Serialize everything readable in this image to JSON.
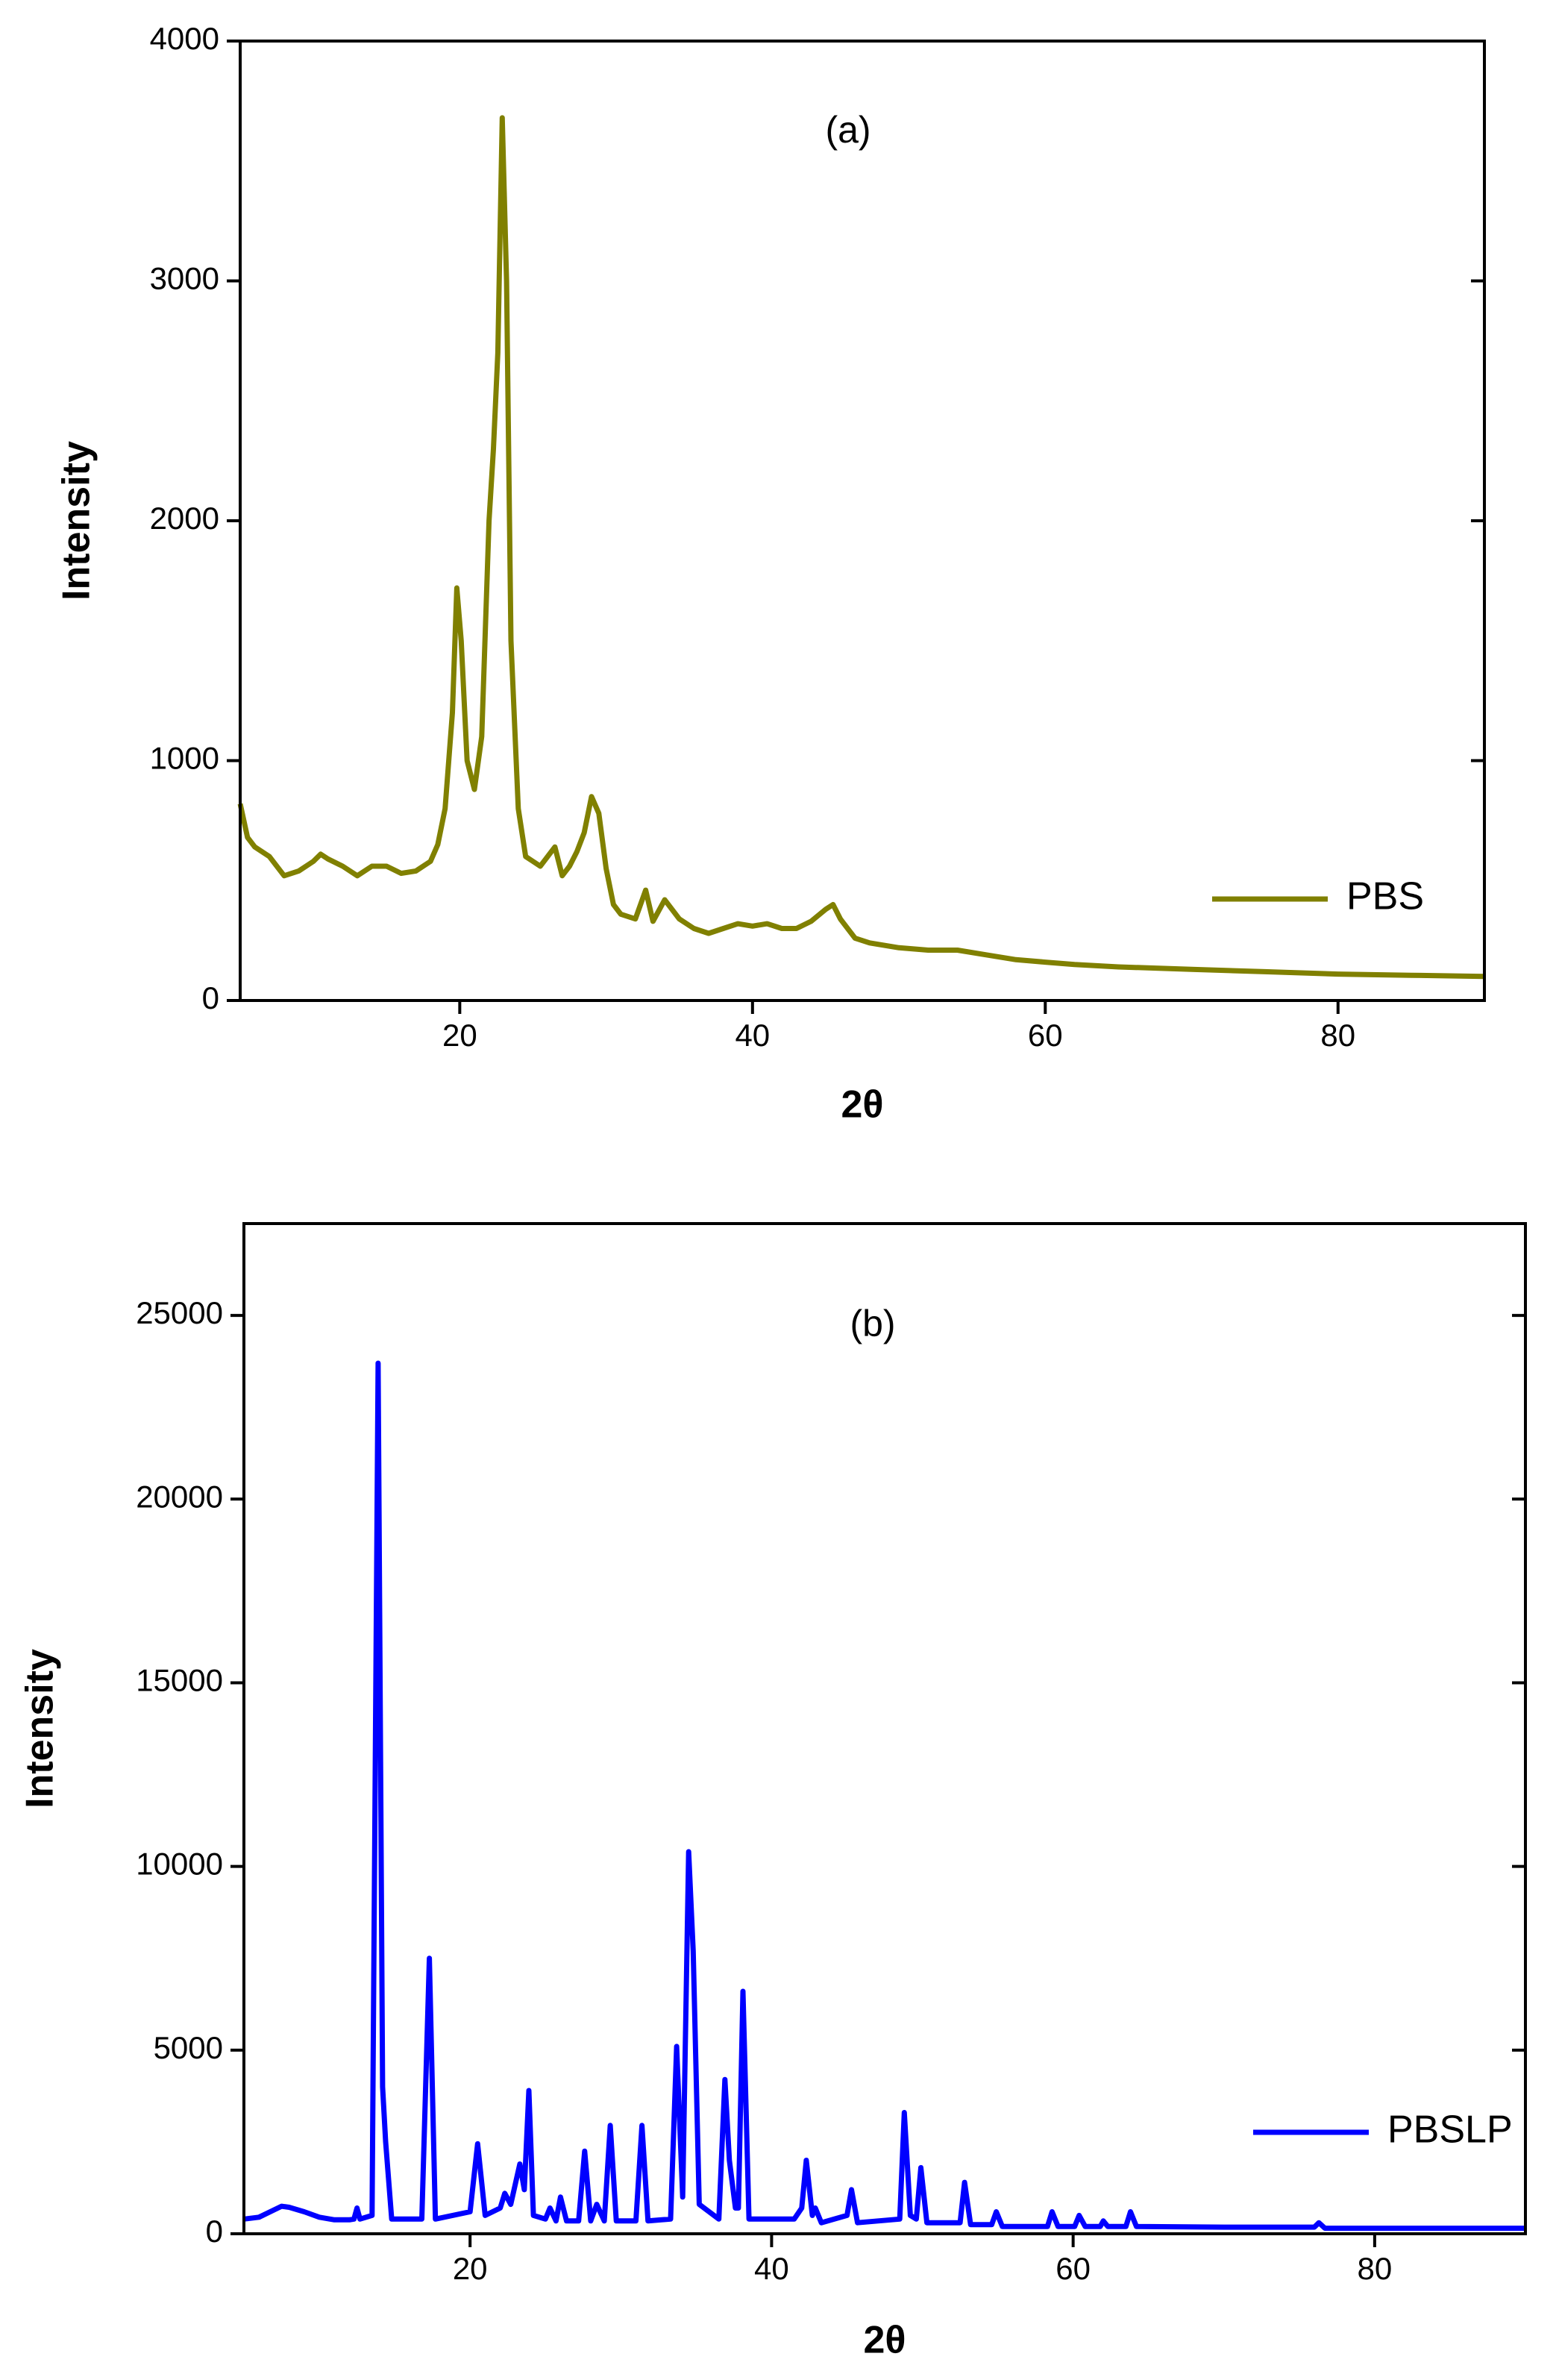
{
  "chart_data": [
    {
      "type": "line",
      "annotation": "(a)",
      "xlabel": "2θ",
      "ylabel": "Intensity",
      "xlim": [
        5,
        90
      ],
      "xticks": [
        20,
        40,
        60,
        80
      ],
      "ylim": [
        0,
        4000
      ],
      "yticks": [
        0,
        1000,
        2000,
        3000,
        4000
      ],
      "legend": "lower right",
      "x": [
        5,
        5.5,
        6,
        7,
        8,
        9,
        10,
        10.5,
        11,
        12,
        13,
        14,
        15,
        16,
        17,
        18,
        18.5,
        19,
        19.5,
        19.8,
        20.1,
        20.5,
        21,
        21.5,
        22,
        22.3,
        22.6,
        22.9,
        23.2,
        23.5,
        24,
        24.5,
        25,
        25.5,
        26,
        26.5,
        27,
        27.5,
        28,
        28.5,
        29,
        29.5,
        30,
        30.5,
        31,
        32,
        32.7,
        33.2,
        34,
        35,
        36,
        37,
        38,
        39,
        40,
        41,
        42,
        43,
        44,
        45,
        45.5,
        46,
        47,
        48,
        50,
        52,
        54,
        56,
        58,
        60,
        62,
        65,
        70,
        75,
        80,
        85,
        90
      ],
      "series": [
        {
          "name": "PBS",
          "color": "#808000",
          "values": [
            820,
            680,
            640,
            600,
            520,
            540,
            580,
            610,
            590,
            560,
            520,
            560,
            560,
            530,
            540,
            580,
            650,
            800,
            1200,
            1720,
            1500,
            1000,
            880,
            1100,
            2000,
            2300,
            2700,
            3680,
            3000,
            1500,
            800,
            600,
            580,
            560,
            600,
            640,
            520,
            560,
            620,
            700,
            850,
            780,
            550,
            400,
            360,
            340,
            460,
            330,
            420,
            340,
            300,
            280,
            300,
            320,
            310,
            320,
            300,
            300,
            330,
            380,
            400,
            340,
            260,
            240,
            220,
            210,
            210,
            190,
            170,
            160,
            150,
            140,
            130,
            120,
            110,
            105,
            100
          ]
        }
      ]
    },
    {
      "type": "line",
      "annotation": "(b)",
      "xlabel": "2θ",
      "ylabel": "Intensity",
      "xlim": [
        5,
        90
      ],
      "xticks": [
        20,
        40,
        60,
        80
      ],
      "ylim": [
        0,
        27500
      ],
      "yticks": [
        0,
        5000,
        10000,
        15000,
        20000,
        25000
      ],
      "legend": "lower right",
      "x": [
        5,
        6,
        7,
        7.5,
        8,
        9,
        10,
        11,
        12,
        12.3,
        12.5,
        12.7,
        13.5,
        13.9,
        14.2,
        14.4,
        14.8,
        16.8,
        17.3,
        17.7,
        20,
        20.5,
        21,
        22,
        22.3,
        22.7,
        23.3,
        23.6,
        23.9,
        24.2,
        25,
        25.3,
        25.7,
        26,
        26.4,
        27.2,
        27.6,
        28,
        28.4,
        28.9,
        29.3,
        29.7,
        31,
        31.4,
        31.8,
        33.3,
        33.7,
        34.1,
        34.5,
        34.8,
        35.2,
        36.5,
        36.9,
        37.2,
        37.6,
        37.8,
        38.1,
        38.5,
        41.5,
        42,
        42.3,
        42.7,
        42.9,
        43.3,
        45,
        45.3,
        45.7,
        48.5,
        48.8,
        49.2,
        49.6,
        49.9,
        50.3,
        52.5,
        52.8,
        53.2,
        54.6,
        54.9,
        55.3,
        58.3,
        58.6,
        59,
        60.1,
        60.4,
        60.8,
        61.8,
        62,
        62.3,
        63.5,
        63.8,
        64.2,
        70,
        76,
        76.3,
        76.7,
        80,
        85,
        90
      ],
      "series": [
        {
          "name": "PBSLP",
          "color": "#0000ff",
          "values": [
            400,
            450,
            650,
            750,
            720,
            600,
            450,
            380,
            380,
            400,
            700,
            400,
            500,
            23700,
            4000,
            2500,
            400,
            400,
            7500,
            400,
            600,
            2450,
            500,
            700,
            1100,
            800,
            1900,
            1200,
            3900,
            500,
            400,
            700,
            350,
            1000,
            350,
            350,
            2250,
            350,
            800,
            350,
            2950,
            350,
            350,
            2950,
            350,
            400,
            5100,
            1000,
            10400,
            7700,
            800,
            400,
            4200,
            2000,
            700,
            700,
            6600,
            400,
            400,
            700,
            2000,
            500,
            700,
            300,
            500,
            1200,
            300,
            400,
            3300,
            500,
            400,
            1800,
            300,
            300,
            1400,
            250,
            250,
            600,
            200,
            200,
            600,
            200,
            200,
            500,
            200,
            200,
            350,
            200,
            200,
            600,
            200,
            180,
            180,
            300,
            150,
            150,
            150,
            150
          ]
        }
      ]
    }
  ]
}
